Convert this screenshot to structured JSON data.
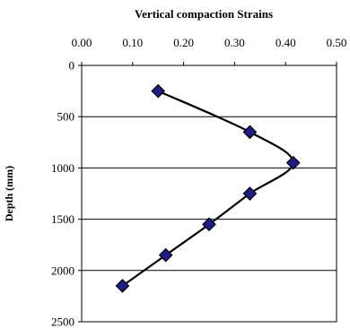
{
  "chart_data": {
    "type": "line",
    "title": "Vertical compaction Strains",
    "xlabel": "",
    "ylabel": "Depth (mm)",
    "x_axis_position": "top",
    "y_axis_inverted": true,
    "xlim": [
      0,
      0.5
    ],
    "ylim": [
      0,
      2500
    ],
    "xticks": [
      "0.00",
      "0.10",
      "0.20",
      "0.30",
      "0.40",
      "0.50"
    ],
    "xtick_values": [
      0,
      0.1,
      0.2,
      0.3,
      0.4,
      0.5
    ],
    "yticks": [
      "0",
      "500",
      "1000",
      "1500",
      "2000",
      "2500"
    ],
    "ytick_values": [
      0,
      500,
      1000,
      1500,
      2000,
      2500
    ],
    "grid": "horizontal",
    "legend": "none",
    "series": [
      {
        "color": "#1c1c8c",
        "marker": "diamond",
        "points": [
          {
            "x": 0.15,
            "y": 250
          },
          {
            "x": 0.33,
            "y": 650
          },
          {
            "x": 0.415,
            "y": 950
          },
          {
            "x": 0.33,
            "y": 1250
          },
          {
            "x": 0.25,
            "y": 1550
          },
          {
            "x": 0.165,
            "y": 1850
          },
          {
            "x": 0.08,
            "y": 2150
          }
        ]
      }
    ]
  }
}
